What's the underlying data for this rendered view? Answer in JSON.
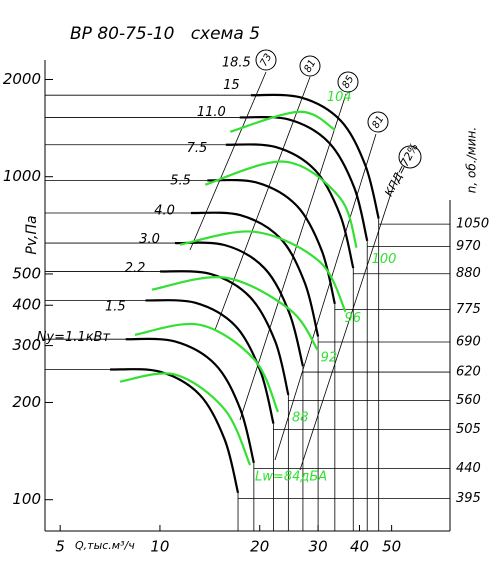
{
  "chart_data": {
    "type": "fan-curves",
    "title": "ВР 80-75-10   схема 5",
    "xlabel": "Q,тыс.м³/ч",
    "ylabel": "Pv,Па",
    "y2label": "n, об./мин.",
    "log_x": true,
    "log_y": true,
    "xlim": [
      4.5,
      75
    ],
    "xticks": [
      5,
      10,
      20,
      30,
      40,
      50
    ],
    "ylim": [
      80,
      2650
    ],
    "yticks": [
      100,
      200,
      300,
      400,
      500,
      1000,
      2000
    ],
    "y2lim": [
      352,
      2023
    ],
    "y2ticks": [
      1050,
      970,
      880,
      775,
      690,
      620,
      560,
      505,
      440,
      395
    ],
    "color": "#000000",
    "series": [
      {
        "name": "18.5",
        "x": [
          18.8,
          26.6,
          35.1,
          41.7,
          45.7
        ],
        "values": [
          1788,
          1759,
          1491,
          1081,
          742
        ]
      },
      {
        "name": "15",
        "x": [
          17.4,
          24.6,
          32.4,
          38.6,
          42.2
        ],
        "values": [
          1526,
          1502,
          1273,
          923,
          633
        ]
      },
      {
        "name": "11.0",
        "x": [
          15.8,
          22.3,
          29.4,
          35.0,
          38.3
        ],
        "values": [
          1256,
          1236,
          1047,
          759,
          521
        ]
      },
      {
        "name": "7.5",
        "x": [
          13.9,
          19.6,
          25.9,
          30.8,
          33.7
        ],
        "values": [
          974,
          959,
          812,
          589,
          404
        ]
      },
      {
        "name": "5.5",
        "x": [
          12.4,
          17.5,
          23.1,
          27.4,
          30.0
        ],
        "values": [
          772,
          760,
          644,
          467,
          320
        ]
      },
      {
        "name": "4.0",
        "x": [
          11.1,
          15.7,
          20.7,
          24.6,
          27.0
        ],
        "values": [
          623,
          614,
          520,
          377,
          259
        ]
      },
      {
        "name": "3.0",
        "x": [
          10.0,
          14.2,
          18.7,
          22.3,
          24.4
        ],
        "values": [
          509,
          500,
          424,
          308,
          211
        ]
      },
      {
        "name": "2.2",
        "x": [
          9.04,
          12.8,
          16.9,
          20.1,
          22.0
        ],
        "values": [
          414,
          407,
          345,
          250,
          172
        ]
      },
      {
        "name": "1.5",
        "x": [
          7.88,
          11.1,
          14.7,
          17.5,
          19.2
        ],
        "values": [
          314,
          309,
          262,
          190,
          130
        ]
      },
      {
        "name": "Ny=1.1кВт",
        "x": [
          7.07,
          10.0,
          13.2,
          15.7,
          17.2
        ],
        "values": [
          253,
          249,
          211,
          153,
          105
        ]
      }
    ],
    "noise_color": "#33e033",
    "noise_lines": [
      {
        "name": "Lw=84дБА",
        "x": [
          7.58,
          11.1,
          15.7,
          18.7
        ],
        "values": [
          232,
          244,
          190,
          128
        ]
      },
      {
        "name": "88",
        "x": [
          8.41,
          13.2,
          19.3,
          22.7
        ],
        "values": [
          324,
          348,
          271,
          187
        ]
      },
      {
        "name": "92",
        "x": [
          9.46,
          15.7,
          24.7,
          29.9
        ],
        "values": [
          447,
          487,
          387,
          291
        ]
      },
      {
        "name": "96",
        "x": [
          11.5,
          19.3,
          30.3,
          36.3
        ],
        "values": [
          616,
          675,
          546,
          382
        ]
      },
      {
        "name": "100",
        "x": [
          13.7,
          23.8,
          34.9,
          39.2
        ],
        "values": [
          945,
          1113,
          861,
          603
        ]
      },
      {
        "name": "104",
        "x": [
          16.3,
          26.4,
          33.7
        ],
        "values": [
          1378,
          1589,
          1398
        ]
      }
    ],
    "efficiency_labels": [
      "73",
      "81",
      "85",
      "81",
      "КПД=72%"
    ]
  }
}
